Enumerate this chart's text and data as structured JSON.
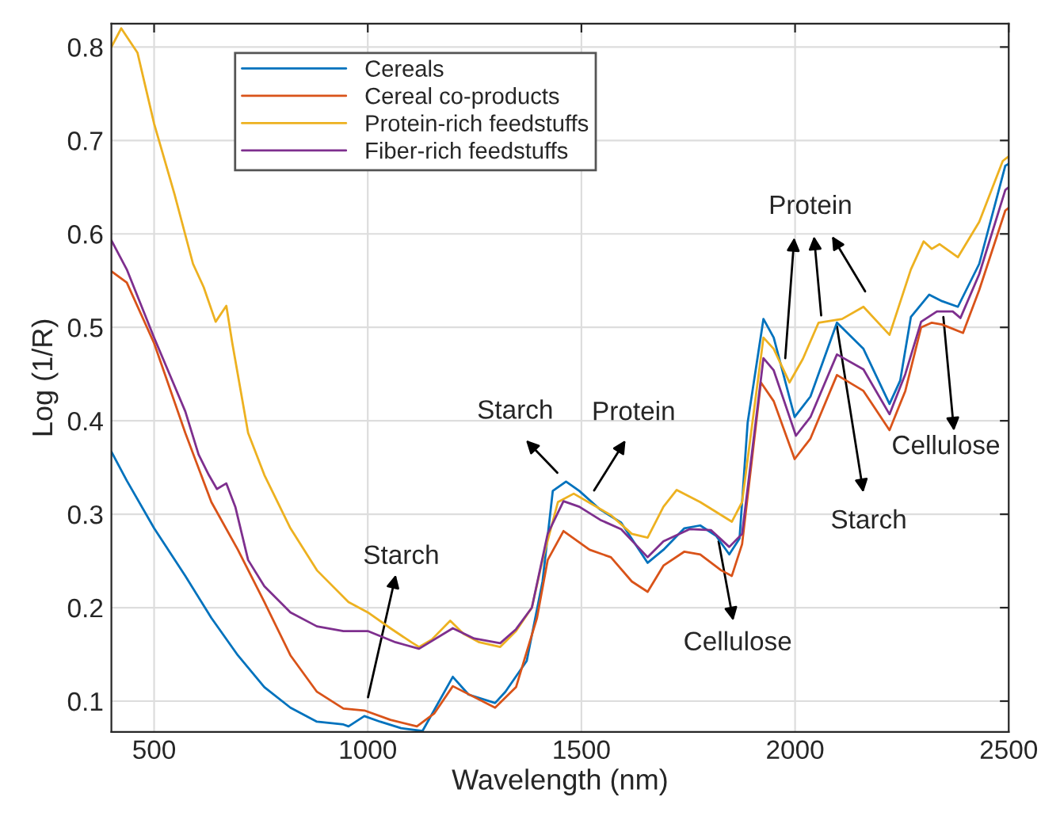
{
  "chart_data": {
    "type": "line",
    "xlabel": "Wavelength (nm)",
    "ylabel": "Log (1/R)",
    "xlim": [
      400,
      2500
    ],
    "ylim": [
      0.067,
      0.825
    ],
    "xticks": [
      500,
      1000,
      1500,
      2000,
      2500
    ],
    "yticks": [
      0.1,
      0.2,
      0.3,
      0.4,
      0.5,
      0.6,
      0.7,
      0.8
    ],
    "grid": true,
    "legend": "top left",
    "marker": "none",
    "line_style": "solid",
    "series": [
      {
        "name": "Cereals",
        "color": "#0072bd",
        "x": [
          400,
          436,
          500,
          573,
          634,
          696,
          758,
          819,
          881,
          943,
          955,
          992,
          1029,
          1078,
          1128,
          1199,
          1236,
          1298,
          1322,
          1372,
          1409,
          1433,
          1464,
          1495,
          1544,
          1593,
          1655,
          1692,
          1741,
          1778,
          1815,
          1846,
          1870,
          1889,
          1926,
          1950,
          1999,
          2036,
          2098,
          2160,
          2221,
          2246,
          2271,
          2314,
          2344,
          2381,
          2431,
          2492,
          2500
        ],
        "values": [
          0.367,
          0.336,
          0.285,
          0.234,
          0.189,
          0.149,
          0.115,
          0.093,
          0.078,
          0.075,
          0.073,
          0.084,
          0.078,
          0.071,
          0.068,
          0.126,
          0.107,
          0.098,
          0.11,
          0.143,
          0.228,
          0.325,
          0.335,
          0.325,
          0.305,
          0.291,
          0.248,
          0.262,
          0.285,
          0.288,
          0.277,
          0.257,
          0.274,
          0.398,
          0.509,
          0.489,
          0.404,
          0.426,
          0.505,
          0.477,
          0.418,
          0.443,
          0.511,
          0.535,
          0.528,
          0.522,
          0.568,
          0.673,
          0.675
        ]
      },
      {
        "name": "Cereal co-products",
        "color": "#d95319",
        "x": [
          400,
          436,
          500,
          573,
          634,
          696,
          758,
          819,
          881,
          943,
          992,
          1053,
          1115,
          1156,
          1199,
          1298,
          1347,
          1396,
          1421,
          1458,
          1519,
          1569,
          1618,
          1655,
          1692,
          1741,
          1778,
          1827,
          1852,
          1876,
          1920,
          1950,
          1999,
          2036,
          2098,
          2160,
          2221,
          2258,
          2295,
          2320,
          2344,
          2393,
          2431,
          2492,
          2500
        ],
        "values": [
          0.56,
          0.548,
          0.483,
          0.387,
          0.313,
          0.262,
          0.206,
          0.149,
          0.11,
          0.092,
          0.09,
          0.08,
          0.073,
          0.087,
          0.116,
          0.093,
          0.115,
          0.189,
          0.251,
          0.282,
          0.262,
          0.254,
          0.228,
          0.217,
          0.245,
          0.26,
          0.257,
          0.24,
          0.234,
          0.268,
          0.441,
          0.421,
          0.359,
          0.381,
          0.449,
          0.432,
          0.39,
          0.432,
          0.5,
          0.505,
          0.503,
          0.494,
          0.54,
          0.625,
          0.628
        ]
      },
      {
        "name": "Protein-rich feedstuffs",
        "color": "#edb120",
        "x": [
          400,
          423,
          461,
          500,
          548,
          591,
          616,
          644,
          669,
          683,
          720,
          758,
          819,
          881,
          955,
          1000,
          1053,
          1102,
          1120,
          1150,
          1193,
          1224,
          1261,
          1310,
          1347,
          1384,
          1409,
          1445,
          1482,
          1569,
          1618,
          1655,
          1692,
          1723,
          1778,
          1852,
          1876,
          1926,
          1950,
          1987,
          2018,
          2055,
          2110,
          2160,
          2221,
          2271,
          2301,
          2320,
          2338,
          2381,
          2431,
          2486,
          2500
        ],
        "values": [
          0.8,
          0.82,
          0.794,
          0.718,
          0.642,
          0.568,
          0.543,
          0.506,
          0.523,
          0.483,
          0.387,
          0.342,
          0.285,
          0.24,
          0.206,
          0.195,
          0.178,
          0.163,
          0.158,
          0.166,
          0.186,
          0.172,
          0.163,
          0.158,
          0.175,
          0.2,
          0.251,
          0.313,
          0.322,
          0.299,
          0.279,
          0.275,
          0.308,
          0.326,
          0.313,
          0.292,
          0.313,
          0.489,
          0.477,
          0.441,
          0.466,
          0.505,
          0.509,
          0.522,
          0.492,
          0.562,
          0.592,
          0.584,
          0.589,
          0.575,
          0.613,
          0.678,
          0.683
        ]
      },
      {
        "name": "Fiber-rich feedstuffs",
        "color": "#7e2f8e",
        "x": [
          400,
          436,
          500,
          573,
          604,
          628,
          647,
          669,
          690,
          720,
          758,
          819,
          881,
          943,
          1000,
          1065,
          1120,
          1199,
          1249,
          1310,
          1347,
          1384,
          1421,
          1458,
          1495,
          1544,
          1593,
          1655,
          1692,
          1753,
          1803,
          1846,
          1876,
          1926,
          1950,
          2002,
          2036,
          2098,
          2160,
          2221,
          2258,
          2295,
          2332,
          2369,
          2387,
          2431,
          2492,
          2500
        ],
        "values": [
          0.593,
          0.562,
          0.489,
          0.41,
          0.364,
          0.342,
          0.327,
          0.333,
          0.308,
          0.251,
          0.223,
          0.195,
          0.18,
          0.175,
          0.175,
          0.163,
          0.156,
          0.178,
          0.167,
          0.162,
          0.177,
          0.2,
          0.279,
          0.314,
          0.308,
          0.294,
          0.284,
          0.254,
          0.271,
          0.284,
          0.283,
          0.265,
          0.279,
          0.467,
          0.454,
          0.384,
          0.404,
          0.471,
          0.455,
          0.407,
          0.45,
          0.506,
          0.517,
          0.517,
          0.51,
          0.557,
          0.647,
          0.65
        ]
      }
    ],
    "annotations": [
      "Starch",
      "Starch",
      "Protein",
      {
        "text": "Cellulose",
        "x": 1821,
        "y": 0.271
      },
      {
        "text": "Protein",
        "x": 1977,
        "y": 0.467
      },
      {
        "text": "Starch",
        "x": 2098,
        "y": 0.501
      },
      {
        "text": "Cellulose",
        "x": 2347,
        "y": 0.511
      }
    ]
  }
}
